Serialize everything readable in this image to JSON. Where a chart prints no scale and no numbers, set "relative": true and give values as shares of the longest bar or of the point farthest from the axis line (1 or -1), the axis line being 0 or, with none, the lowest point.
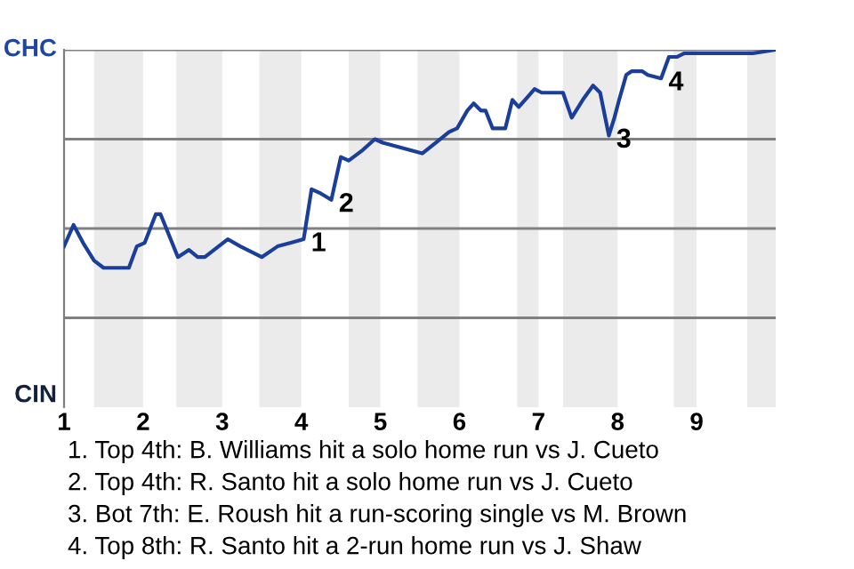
{
  "chart_data": {
    "type": "line",
    "relative": true,
    "x": [
      1.0,
      1.12,
      1.24,
      1.38,
      1.5,
      1.6,
      1.7,
      1.82,
      1.92,
      2.02,
      2.16,
      2.22,
      2.44,
      2.58,
      2.69,
      2.78,
      3.07,
      3.23,
      3.5,
      3.7,
      3.87,
      4.03,
      4.13,
      4.23,
      4.38,
      4.5,
      4.6,
      4.78,
      4.93,
      5.03,
      5.53,
      5.7,
      5.87,
      5.97,
      6.1,
      6.18,
      6.27,
      6.33,
      6.42,
      6.5,
      6.58,
      6.67,
      6.75,
      6.87,
      6.95,
      7.04,
      7.18,
      7.31,
      7.42,
      7.56,
      7.69,
      7.78,
      7.89,
      7.96,
      8.02,
      8.11,
      8.18,
      8.31,
      8.38,
      8.55,
      8.65,
      8.75,
      8.84,
      8.93,
      8.98,
      9.71,
      10.0
    ],
    "series": [
      {
        "color": "#1a3e9a",
        "values": [
          0.45,
          0.51,
          0.46,
          0.41,
          0.39,
          0.39,
          0.39,
          0.39,
          0.45,
          0.46,
          0.54,
          0.54,
          0.42,
          0.44,
          0.42,
          0.42,
          0.47,
          0.45,
          0.42,
          0.45,
          0.46,
          0.47,
          0.61,
          0.6,
          0.58,
          0.7,
          0.69,
          0.72,
          0.75,
          0.74,
          0.71,
          0.74,
          0.77,
          0.78,
          0.83,
          0.85,
          0.83,
          0.83,
          0.78,
          0.78,
          0.78,
          0.86,
          0.84,
          0.87,
          0.89,
          0.88,
          0.88,
          0.88,
          0.81,
          0.86,
          0.9,
          0.88,
          0.76,
          0.81,
          0.86,
          0.93,
          0.94,
          0.94,
          0.93,
          0.92,
          0.98,
          0.98,
          0.99,
          0.99,
          0.99,
          0.99,
          1.0
        ]
      }
    ],
    "xlim": [
      1,
      10
    ],
    "xticks": [
      1,
      2,
      3,
      4,
      5,
      6,
      7,
      8,
      9
    ],
    "marker": "none",
    "line_style": "solid",
    "ref_lines": [
      {
        "axis": "y",
        "value": 0.25,
        "color": "#808080"
      },
      {
        "axis": "y",
        "value": 0.5,
        "color": "#808080"
      },
      {
        "axis": "y",
        "value": 0.75,
        "color": "#808080"
      },
      {
        "axis": "y",
        "value": 1,
        "color": "#808080"
      }
    ],
    "bands": [
      {
        "axis": "x",
        "from": 1.38,
        "to": 2,
        "color": "#ebebeb"
      },
      {
        "axis": "x",
        "from": 2.42,
        "to": 3,
        "color": "#ebebeb"
      },
      {
        "axis": "x",
        "from": 3.47,
        "to": 4,
        "color": "#ebebeb"
      },
      {
        "axis": "x",
        "from": 4.6,
        "to": 5,
        "color": "#ebebeb"
      },
      {
        "axis": "x",
        "from": 5.47,
        "to": 6,
        "color": "#ebebeb"
      },
      {
        "axis": "x",
        "from": 6.73,
        "to": 7,
        "color": "#ebebeb"
      },
      {
        "axis": "x",
        "from": 7.31,
        "to": 8,
        "color": "#ebebeb"
      },
      {
        "axis": "x",
        "from": 8.71,
        "to": 9,
        "color": "#ebebeb"
      },
      {
        "axis": "x",
        "from": 9.64,
        "to": 10,
        "color": "#ebebeb"
      }
    ],
    "annotations": [
      "CHC",
      "CIN",
      {
        "text": "1",
        "x": 4.03,
        "y": 0.47
      },
      {
        "text": "2",
        "x": 4.38,
        "y": 0.58
      },
      {
        "text": "3",
        "x": 7.89,
        "y": 0.76
      },
      {
        "text": "4",
        "x": 8.55,
        "y": 0.92
      },
      "1. Top 4th: B. Williams hit a solo home run vs J. Cueto",
      "2. Top 4th: R. Santo hit a solo home run vs J. Cueto",
      "3. Bot 7th: E. Roush hit a run-scoring single vs M. Brown",
      "4. Top 8th: R. Santo hit a 2-run home run vs J. Shaw"
    ]
  }
}
